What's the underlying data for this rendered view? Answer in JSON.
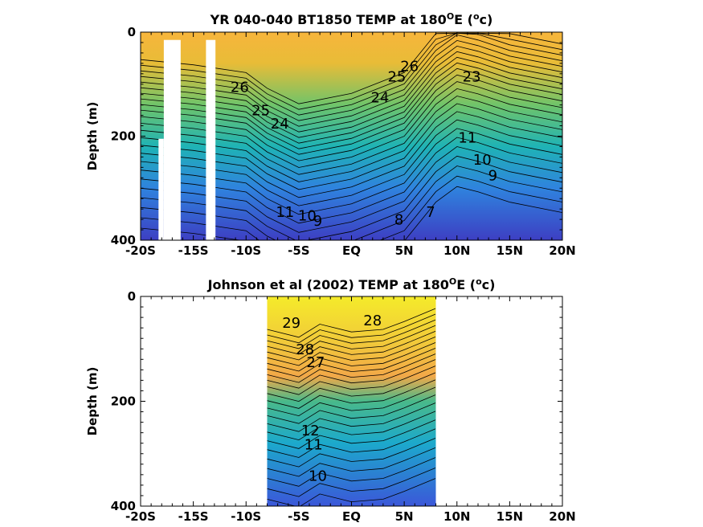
{
  "chart_data": [
    {
      "type": "heatmap",
      "title_main": "YR 040-040 BT1850 TEMP at 180",
      "title_sup": "O",
      "title_mid": "E (",
      "title_sup2": "o",
      "title_end": "c)",
      "ylabel": "Depth (m)",
      "xlabel": "",
      "xlim": [
        -20,
        20
      ],
      "ylim": [
        0,
        400
      ],
      "y_inverted": true,
      "x_ticks": [
        -20,
        -15,
        -10,
        -5,
        0,
        5,
        10,
        15,
        20
      ],
      "x_tick_labels": [
        "-20S",
        "-15S",
        "-10S",
        "-5S",
        "EQ",
        "5N",
        "10N",
        "15N",
        "20N"
      ],
      "y_ticks": [
        0,
        200,
        400
      ],
      "y_tick_labels": [
        "0",
        "200",
        "400"
      ],
      "data_extent": [
        -20,
        20
      ],
      "thermocline": {
        "x": [
          -20,
          -15,
          -10,
          -8,
          -5,
          0,
          5,
          8,
          10,
          12,
          15,
          20
        ],
        "depth": [
          150,
          160,
          175,
          205,
          235,
          215,
          175,
          100,
          70,
          80,
          100,
          120
        ]
      },
      "gaps": [
        {
          "x0": -17.8,
          "x1": -16.2,
          "y0": 15,
          "y1": 400
        },
        {
          "x0": -18.3,
          "x1": -17.8,
          "y0": 205,
          "y1": 400
        },
        {
          "x0": -13.8,
          "x1": -12.9,
          "y0": 15,
          "y1": 400
        }
      ],
      "contour_labels": [
        {
          "text": "26",
          "x": -10.6,
          "depth": 115
        },
        {
          "text": "25",
          "x": -8.6,
          "depth": 160
        },
        {
          "text": "24",
          "x": -6.8,
          "depth": 185
        },
        {
          "text": "26",
          "x": 5.5,
          "depth": 75
        },
        {
          "text": "25",
          "x": 4.3,
          "depth": 95
        },
        {
          "text": "24",
          "x": 2.7,
          "depth": 135
        },
        {
          "text": "23",
          "x": 11.4,
          "depth": 95
        },
        {
          "text": "10",
          "x": -4.2,
          "depth": 362
        },
        {
          "text": "9",
          "x": -3.2,
          "depth": 372
        },
        {
          "text": "11",
          "x": -6.3,
          "depth": 355
        },
        {
          "text": "8",
          "x": 4.5,
          "depth": 370
        },
        {
          "text": "7",
          "x": 7.5,
          "depth": 355
        },
        {
          "text": "10",
          "x": 12.4,
          "depth": 255
        },
        {
          "text": "9",
          "x": 13.4,
          "depth": 285
        },
        {
          "text": "11",
          "x": 11.0,
          "depth": 212
        }
      ]
    },
    {
      "type": "heatmap",
      "title_main": "Johnson et al (2002) TEMP at 180",
      "title_sup": "O",
      "title_mid": "E (",
      "title_sup2": "o",
      "title_end": "c)",
      "ylabel": "Depth (m)",
      "xlabel": "",
      "xlim": [
        -20,
        20
      ],
      "ylim": [
        0,
        400
      ],
      "y_inverted": true,
      "x_ticks": [
        -20,
        -15,
        -10,
        -5,
        0,
        5,
        10,
        15,
        20
      ],
      "x_tick_labels": [
        "-20S",
        "-15S",
        "-10S",
        "-5S",
        "EQ",
        "5N",
        "10N",
        "15N",
        "20N"
      ],
      "y_ticks": [
        0,
        200,
        400
      ],
      "y_tick_labels": [
        "0",
        "200",
        "400"
      ],
      "data_extent": [
        -8,
        8
      ],
      "thermocline": {
        "x": [
          -8,
          -5,
          -3,
          0,
          3,
          5,
          8
        ],
        "depth": [
          160,
          175,
          150,
          165,
          160,
          145,
          120
        ]
      },
      "gaps": [],
      "contour_labels": [
        {
          "text": "29",
          "x": -5.7,
          "depth": 60
        },
        {
          "text": "28",
          "x": 2.0,
          "depth": 55
        },
        {
          "text": "28",
          "x": -4.4,
          "depth": 110
        },
        {
          "text": "27",
          "x": -3.4,
          "depth": 135
        },
        {
          "text": "12",
          "x": -3.9,
          "depth": 265
        },
        {
          "text": "11",
          "x": -3.6,
          "depth": 292
        },
        {
          "text": "10",
          "x": -3.2,
          "depth": 352
        }
      ]
    }
  ]
}
